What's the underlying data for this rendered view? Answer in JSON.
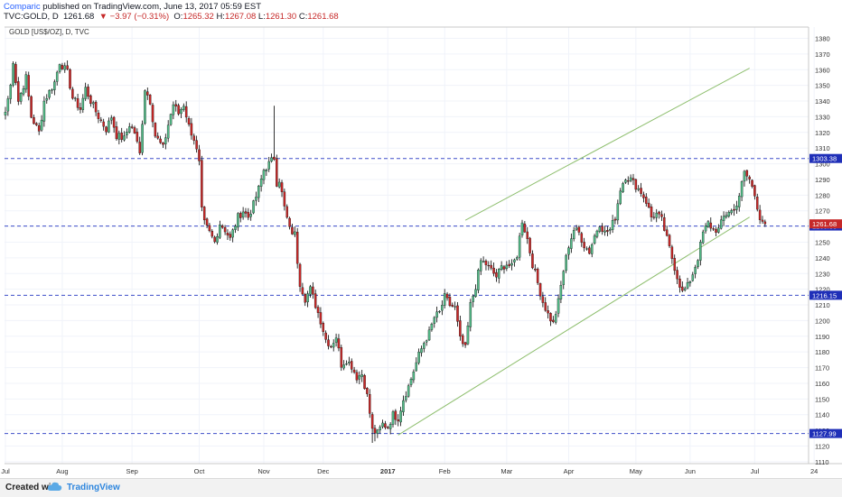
{
  "header": {
    "author": "Comparic",
    "published": "published on TradingView.com, June 13, 2017 05:59 EST",
    "symbol": "TVC:GOLD, D",
    "last": "1261.68",
    "change": "▼ −3.97 (−0.31%)",
    "o_label": "O:",
    "o_value": "1265.32",
    "h_label": "H:",
    "h_value": "1267.08",
    "l_label": "L:",
    "l_value": "1261.30",
    "c_label": "C:",
    "c_value": "1261.68"
  },
  "chart_data": {
    "type": "candlestick",
    "title": "GOLD [US$/OZ], D, TVC",
    "x_labels": [
      "Jul",
      "Aug",
      "Sep",
      "Oct",
      "Nov",
      "Dec",
      "2017",
      "Feb",
      "Mar",
      "Apr",
      "May",
      "Jun",
      "Jul",
      "24"
    ],
    "y_ticks": [
      1110,
      1120,
      1130,
      1140,
      1150,
      1160,
      1170,
      1180,
      1190,
      1200,
      1210,
      1220,
      1230,
      1240,
      1250,
      1260,
      1270,
      1280,
      1290,
      1300,
      1310,
      1320,
      1330,
      1340,
      1350,
      1360,
      1370,
      1380
    ],
    "ylim": [
      1106,
      1388
    ],
    "grid": true,
    "colors": {
      "up": "#53b987",
      "down": "#c62828",
      "level": "#3f4fc9",
      "channel": "#8fbf6f",
      "current": "#c62828"
    },
    "levels": [
      {
        "value": 1303.38,
        "label": "1303.38"
      },
      {
        "value": 1260.3,
        "label": "1260.30"
      },
      {
        "value": 1216.15,
        "label": "1216.15"
      },
      {
        "value": 1127.99,
        "label": "1127.99"
      }
    ],
    "current_price": {
      "value": 1261.68,
      "label": "1261.68"
    },
    "channel": {
      "lower": [
        [
          152,
          1127
        ],
        [
          288,
          1266
        ]
      ],
      "upper": [
        [
          178,
          1264
        ],
        [
          288,
          1361
        ]
      ]
    },
    "anchors": [
      [
        0,
        1333
      ],
      [
        2,
        1350
      ],
      [
        3,
        1366
      ],
      [
        5,
        1340
      ],
      [
        8,
        1355
      ],
      [
        10,
        1330
      ],
      [
        13,
        1320
      ],
      [
        15,
        1340
      ],
      [
        19,
        1352
      ],
      [
        21,
        1365
      ],
      [
        24,
        1358
      ],
      [
        26,
        1342
      ],
      [
        29,
        1335
      ],
      [
        31,
        1348
      ],
      [
        33,
        1340
      ],
      [
        36,
        1330
      ],
      [
        39,
        1322
      ],
      [
        41,
        1330
      ],
      [
        43,
        1318
      ],
      [
        46,
        1316
      ],
      [
        48,
        1325
      ],
      [
        50,
        1320
      ],
      [
        52,
        1306
      ],
      [
        54,
        1348
      ],
      [
        56,
        1340
      ],
      [
        58,
        1318
      ],
      [
        61,
        1310
      ],
      [
        63,
        1325
      ],
      [
        65,
        1338
      ],
      [
        67,
        1332
      ],
      [
        69,
        1338
      ],
      [
        71,
        1324
      ],
      [
        73,
        1316
      ],
      [
        75,
        1300
      ],
      [
        76,
        1270
      ],
      [
        77,
        1262
      ],
      [
        79,
        1256
      ],
      [
        81,
        1250
      ],
      [
        83,
        1262
      ],
      [
        85,
        1258
      ],
      [
        87,
        1252
      ],
      [
        90,
        1266
      ],
      [
        92,
        1270
      ],
      [
        94,
        1266
      ],
      [
        96,
        1274
      ],
      [
        98,
        1284
      ],
      [
        100,
        1296
      ],
      [
        102,
        1300
      ],
      [
        104,
        1304
      ],
      [
        105,
        1288
      ],
      [
        106,
        1290
      ],
      [
        108,
        1272
      ],
      [
        110,
        1258
      ],
      [
        112,
        1255
      ],
      [
        113,
        1238
      ],
      [
        114,
        1224
      ],
      [
        116,
        1214
      ],
      [
        118,
        1220
      ],
      [
        120,
        1210
      ],
      [
        122,
        1200
      ],
      [
        124,
        1188
      ],
      [
        126,
        1184
      ],
      [
        128,
        1190
      ],
      [
        130,
        1172
      ],
      [
        132,
        1175
      ],
      [
        134,
        1171
      ],
      [
        136,
        1164
      ],
      [
        138,
        1166
      ],
      [
        140,
        1152
      ],
      [
        142,
        1130
      ],
      [
        144,
        1128
      ],
      [
        146,
        1134
      ],
      [
        148,
        1132
      ],
      [
        150,
        1140
      ],
      [
        152,
        1138
      ],
      [
        154,
        1150
      ],
      [
        156,
        1158
      ],
      [
        158,
        1168
      ],
      [
        160,
        1178
      ],
      [
        162,
        1186
      ],
      [
        164,
        1192
      ],
      [
        166,
        1202
      ],
      [
        168,
        1205
      ],
      [
        170,
        1215
      ],
      [
        172,
        1210
      ],
      [
        174,
        1208
      ],
      [
        176,
        1188
      ],
      [
        178,
        1182
      ],
      [
        180,
        1210
      ],
      [
        182,
        1222
      ],
      [
        184,
        1238
      ],
      [
        186,
        1236
      ],
      [
        188,
        1232
      ],
      [
        190,
        1228
      ],
      [
        192,
        1234
      ],
      [
        194,
        1236
      ],
      [
        196,
        1234
      ],
      [
        198,
        1242
      ],
      [
        200,
        1264
      ],
      [
        202,
        1252
      ],
      [
        204,
        1236
      ],
      [
        206,
        1224
      ],
      [
        208,
        1212
      ],
      [
        210,
        1204
      ],
      [
        212,
        1198
      ],
      [
        214,
        1212
      ],
      [
        216,
        1232
      ],
      [
        218,
        1248
      ],
      [
        220,
        1258
      ],
      [
        222,
        1256
      ],
      [
        224,
        1248
      ],
      [
        226,
        1244
      ],
      [
        228,
        1254
      ],
      [
        230,
        1262
      ],
      [
        232,
        1256
      ],
      [
        234,
        1258
      ],
      [
        236,
        1266
      ],
      [
        238,
        1284
      ],
      [
        240,
        1292
      ],
      [
        242,
        1290
      ],
      [
        244,
        1286
      ],
      [
        246,
        1282
      ],
      [
        248,
        1276
      ],
      [
        250,
        1266
      ],
      [
        252,
        1268
      ],
      [
        254,
        1264
      ],
      [
        256,
        1252
      ],
      [
        258,
        1240
      ],
      [
        260,
        1228
      ],
      [
        262,
        1218
      ],
      [
        264,
        1222
      ],
      [
        266,
        1230
      ],
      [
        268,
        1240
      ],
      [
        270,
        1256
      ],
      [
        272,
        1262
      ],
      [
        274,
        1258
      ],
      [
        276,
        1258
      ],
      [
        278,
        1266
      ],
      [
        280,
        1270
      ],
      [
        282,
        1270
      ],
      [
        284,
        1280
      ],
      [
        286,
        1294
      ],
      [
        288,
        1290
      ],
      [
        290,
        1280
      ],
      [
        292,
        1266
      ],
      [
        294,
        1261.68
      ]
    ]
  }
}
